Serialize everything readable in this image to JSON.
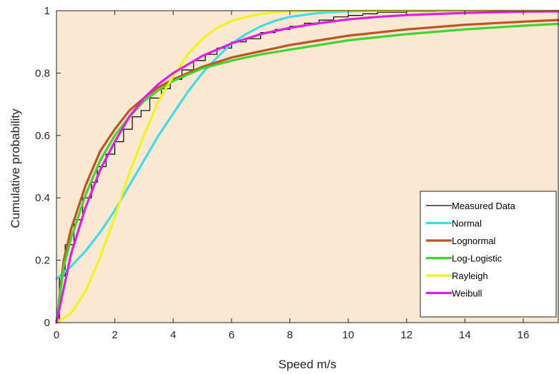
{
  "chart_data": {
    "type": "line",
    "xlabel": "Speed m/s",
    "ylabel": "Cumulative probability",
    "xlim": [
      0,
      17.2
    ],
    "ylim": [
      0,
      1
    ],
    "xticks": [
      0,
      2,
      4,
      6,
      8,
      10,
      12,
      14,
      16
    ],
    "yticks": [
      0,
      0.2,
      0.4,
      0.6,
      0.8,
      1
    ],
    "xtick_labels": [
      "0",
      "2",
      "4",
      "6",
      "8",
      "10",
      "12",
      "14",
      "16"
    ],
    "ytick_labels": [
      "0",
      "0.2",
      "0.4",
      "0.6",
      "0.8",
      "1"
    ],
    "grid": false,
    "legend_position": "bottom-right",
    "background_fill": "#fbe8d3",
    "series": [
      {
        "name": "Measured Data",
        "kind": "step",
        "color": "#000000",
        "x": [
          0,
          0.1,
          0.1,
          0.3,
          0.3,
          0.6,
          0.6,
          0.9,
          0.9,
          1.2,
          1.2,
          1.4,
          1.4,
          1.7,
          1.7,
          2.0,
          2.0,
          2.3,
          2.3,
          2.6,
          2.6,
          2.9,
          2.9,
          3.2,
          3.2,
          3.6,
          3.6,
          3.9,
          3.9,
          4.3,
          4.3,
          4.7,
          4.7,
          5.1,
          5.1,
          5.5,
          5.5,
          6.0,
          6.0,
          6.5,
          6.5,
          7.0,
          7.0,
          7.5,
          7.5,
          8.0,
          8.0,
          8.5,
          8.5,
          9.0,
          9.0,
          9.5,
          9.5,
          10.0,
          10.0,
          10.5,
          10.5,
          11.0,
          11.0,
          12.0,
          12.0,
          13.0,
          13.0,
          14.0,
          14.0,
          17.2
        ],
        "y": [
          0,
          0,
          0.15,
          0.15,
          0.25,
          0.25,
          0.33,
          0.33,
          0.4,
          0.4,
          0.45,
          0.45,
          0.5,
          0.5,
          0.54,
          0.54,
          0.58,
          0.58,
          0.62,
          0.62,
          0.66,
          0.66,
          0.68,
          0.68,
          0.72,
          0.72,
          0.75,
          0.75,
          0.78,
          0.78,
          0.81,
          0.81,
          0.84,
          0.84,
          0.86,
          0.86,
          0.88,
          0.88,
          0.9,
          0.9,
          0.91,
          0.91,
          0.93,
          0.93,
          0.94,
          0.94,
          0.95,
          0.95,
          0.96,
          0.96,
          0.97,
          0.97,
          0.98,
          0.98,
          0.985,
          0.985,
          0.99,
          0.99,
          0.995,
          0.995,
          0.997,
          0.997,
          0.999,
          0.999,
          1.0,
          1.0
        ]
      },
      {
        "name": "Normal",
        "color": "#3fdcea",
        "x": [
          0,
          0.5,
          1,
          1.5,
          2,
          2.5,
          3,
          3.5,
          4,
          4.5,
          5,
          5.5,
          6,
          6.5,
          7,
          7.5,
          8,
          9,
          10,
          11,
          12,
          17.2
        ],
        "y": [
          0.14,
          0.18,
          0.23,
          0.29,
          0.36,
          0.44,
          0.52,
          0.6,
          0.67,
          0.74,
          0.8,
          0.85,
          0.895,
          0.925,
          0.95,
          0.968,
          0.98,
          0.993,
          0.998,
          0.9995,
          1.0,
          1.0
        ]
      },
      {
        "name": "Lognormal",
        "color": "#c0531f",
        "x": [
          0,
          0.25,
          0.5,
          1,
          1.5,
          2,
          2.5,
          3,
          3.5,
          4,
          5,
          6,
          7,
          8,
          9,
          10,
          12,
          14,
          16,
          17.2
        ],
        "y": [
          0,
          0.2,
          0.3,
          0.44,
          0.55,
          0.62,
          0.68,
          0.72,
          0.755,
          0.78,
          0.82,
          0.85,
          0.87,
          0.89,
          0.905,
          0.92,
          0.94,
          0.955,
          0.965,
          0.97
        ]
      },
      {
        "name": "Log-Logistic",
        "color": "#3ed62c",
        "x": [
          0,
          0.25,
          0.5,
          1,
          1.5,
          2,
          2.5,
          3,
          3.5,
          4,
          5,
          6,
          7,
          8,
          9,
          10,
          12,
          14,
          16,
          17.2
        ],
        "y": [
          0,
          0.18,
          0.27,
          0.41,
          0.52,
          0.6,
          0.66,
          0.71,
          0.745,
          0.775,
          0.815,
          0.84,
          0.86,
          0.875,
          0.89,
          0.905,
          0.925,
          0.94,
          0.952,
          0.958
        ]
      },
      {
        "name": "Rayleigh",
        "color": "#f2f21f",
        "x": [
          0,
          0.5,
          1,
          1.5,
          2,
          2.5,
          3,
          3.5,
          4,
          4.5,
          5,
          5.5,
          6,
          6.5,
          7,
          7.5,
          8,
          9,
          10,
          17.2
        ],
        "y": [
          0,
          0.03,
          0.1,
          0.21,
          0.34,
          0.48,
          0.6,
          0.71,
          0.79,
          0.86,
          0.91,
          0.945,
          0.967,
          0.98,
          0.99,
          0.995,
          0.998,
          1.0,
          1.0,
          1.0
        ]
      },
      {
        "name": "Weibull",
        "color": "#e020e0",
        "x": [
          0,
          0.5,
          1,
          1.5,
          2,
          2.5,
          3,
          3.5,
          4,
          5,
          6,
          7,
          8,
          9,
          10,
          11,
          12,
          14,
          16,
          17.2
        ],
        "y": [
          0,
          0.22,
          0.37,
          0.49,
          0.58,
          0.66,
          0.72,
          0.765,
          0.8,
          0.855,
          0.895,
          0.925,
          0.945,
          0.96,
          0.972,
          0.98,
          0.986,
          0.993,
          0.997,
          0.998
        ]
      }
    ]
  }
}
